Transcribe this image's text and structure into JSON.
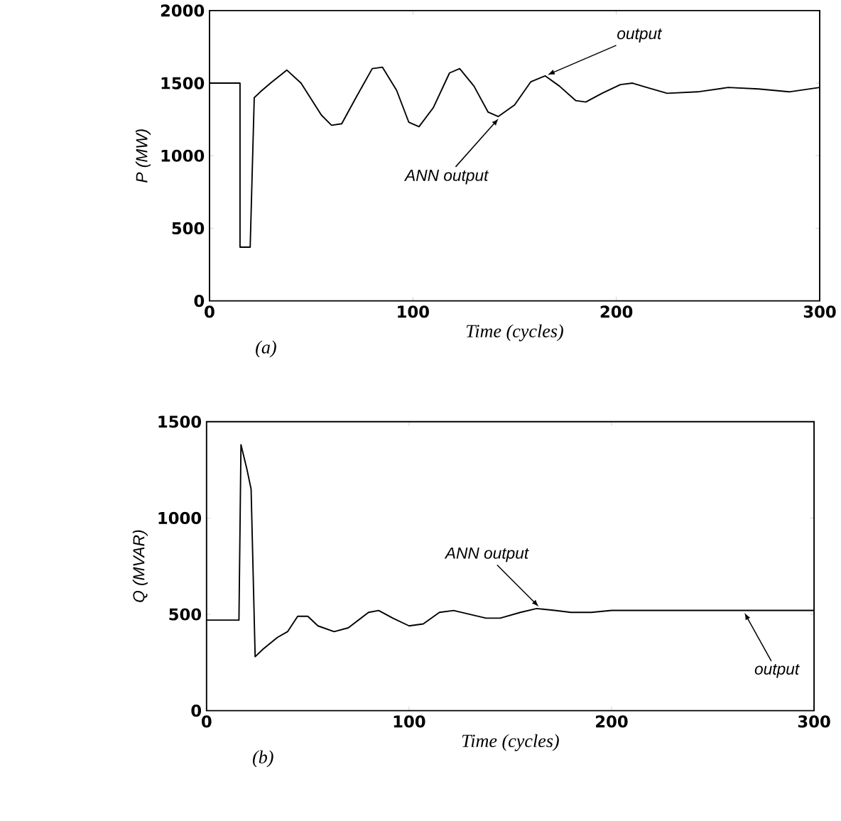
{
  "chart_data": [
    {
      "type": "line",
      "xlabel": "Time (cycles)",
      "ylabel": "P (MW)",
      "xlim": [
        0,
        300
      ],
      "ylim": [
        0,
        2000
      ],
      "xticks": [
        0,
        100,
        200,
        300
      ],
      "yticks": [
        0,
        500,
        1000,
        1500,
        2000
      ],
      "x": [
        0,
        15,
        15,
        20,
        22,
        25,
        30,
        38,
        45,
        55,
        60,
        65,
        72,
        80,
        85,
        92,
        98,
        103,
        110,
        118,
        123,
        130,
        137,
        142,
        150,
        158,
        165,
        172,
        180,
        185,
        193,
        202,
        208,
        215,
        225,
        240,
        255,
        270,
        285,
        300
      ],
      "series": [
        {
          "color": "#000000",
          "values": [
            1500,
            1500,
            370,
            370,
            1400,
            1440,
            1500,
            1590,
            1500,
            1280,
            1210,
            1220,
            1400,
            1600,
            1610,
            1450,
            1230,
            1200,
            1330,
            1570,
            1600,
            1480,
            1300,
            1270,
            1350,
            1510,
            1550,
            1480,
            1380,
            1370,
            1430,
            1490,
            1500,
            1470,
            1430,
            1440,
            1470,
            1460,
            1440,
            1470
          ]
        }
      ],
      "annotations": [
        {
          "text": "output",
          "x": 165,
          "y": 1550
        },
        {
          "text": "ANN output",
          "x": 143,
          "y": 1270
        },
        "(a)"
      ]
    },
    {
      "type": "line",
      "xlabel": "Time (cycles)",
      "ylabel": "Q (MVAR)",
      "xlim": [
        0,
        300
      ],
      "ylim": [
        0,
        1500
      ],
      "xticks": [
        0,
        100,
        200,
        300
      ],
      "yticks": [
        0,
        500,
        1000,
        1500
      ],
      "x": [
        0,
        16,
        17,
        20,
        22,
        24,
        28,
        35,
        40,
        45,
        50,
        55,
        63,
        70,
        80,
        85,
        92,
        100,
        107,
        115,
        122,
        130,
        138,
        145,
        155,
        163,
        172,
        180,
        190,
        200,
        220,
        250,
        280,
        300
      ],
      "series": [
        {
          "color": "#000000",
          "values": [
            470,
            470,
            1380,
            1250,
            1150,
            280,
            320,
            380,
            410,
            490,
            490,
            440,
            410,
            430,
            510,
            520,
            480,
            440,
            450,
            510,
            520,
            500,
            480,
            480,
            510,
            530,
            520,
            510,
            510,
            520,
            520,
            520,
            520,
            520
          ]
        }
      ],
      "annotations": [
        {
          "text": "ANN output",
          "x": 165,
          "y": 530
        },
        {
          "text": "output",
          "x": 265,
          "y": 520
        },
        "(b)"
      ]
    }
  ]
}
